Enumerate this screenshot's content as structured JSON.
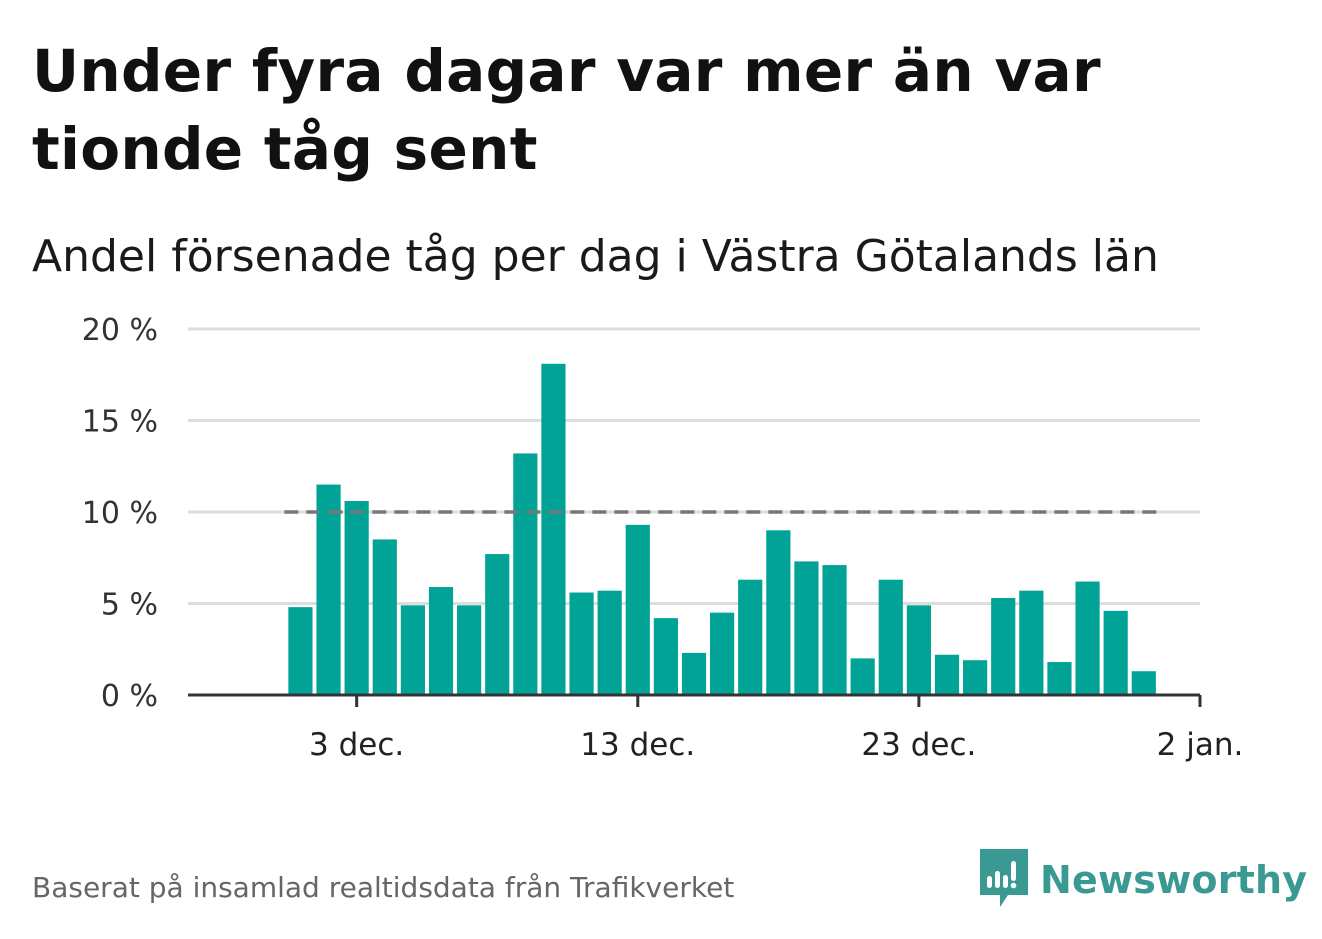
{
  "title": "Under fyra dagar var mer än var tionde tåg sent",
  "subtitle": "Andel försenade tåg per dag i Västra Götalands län",
  "source": "Baserat på insamlad realtidsdata från Trafikverket",
  "brand": {
    "name": "Newsworthy",
    "icon": "newsworthy-logo-icon",
    "color": "#3a9a93"
  },
  "colors": {
    "bar": "#00a396",
    "grid": "#dddddd",
    "axis": "#333333",
    "reference": "#777777"
  },
  "chart_data": {
    "type": "bar",
    "title": "Under fyra dagar var mer än var tionde tåg sent",
    "subtitle": "Andel försenade tåg per dag i Västra Götalands län",
    "xlabel": "",
    "ylabel": "",
    "x": [
      "2019-12-01",
      "2019-12-02",
      "2019-12-03",
      "2019-12-04",
      "2019-12-05",
      "2019-12-06",
      "2019-12-07",
      "2019-12-08",
      "2019-12-09",
      "2019-12-10",
      "2019-12-11",
      "2019-12-12",
      "2019-12-13",
      "2019-12-14",
      "2019-12-15",
      "2019-12-16",
      "2019-12-17",
      "2019-12-18",
      "2019-12-19",
      "2019-12-20",
      "2019-12-21",
      "2019-12-22",
      "2019-12-23",
      "2019-12-24",
      "2019-12-25",
      "2019-12-26",
      "2019-12-27",
      "2019-12-28",
      "2019-12-29",
      "2019-12-30",
      "2019-12-31"
    ],
    "values": [
      4.8,
      11.5,
      10.6,
      8.5,
      4.9,
      5.9,
      4.9,
      7.7,
      13.2,
      18.1,
      5.6,
      5.7,
      9.3,
      4.2,
      2.3,
      4.5,
      6.3,
      9.0,
      7.3,
      7.1,
      2.0,
      6.3,
      4.9,
      2.2,
      1.9,
      5.3,
      5.7,
      1.8,
      6.2,
      4.6,
      1.3
    ],
    "ylim": [
      0,
      20
    ],
    "yticks": [
      0,
      5,
      10,
      15,
      20
    ],
    "ytick_labels": [
      "0 %",
      "5 %",
      "10 %",
      "15 %",
      "20 %"
    ],
    "xtick_positions": [
      "2019-12-03",
      "2019-12-13",
      "2019-12-23",
      "2020-01-02"
    ],
    "xtick_labels": [
      "3 dec.",
      "13 dec.",
      "23 dec.",
      "2 jan."
    ],
    "xlim": [
      "2019-11-27",
      "2020-01-02"
    ],
    "reference_line": {
      "value": 10,
      "style": "dashed"
    },
    "grid": true
  }
}
